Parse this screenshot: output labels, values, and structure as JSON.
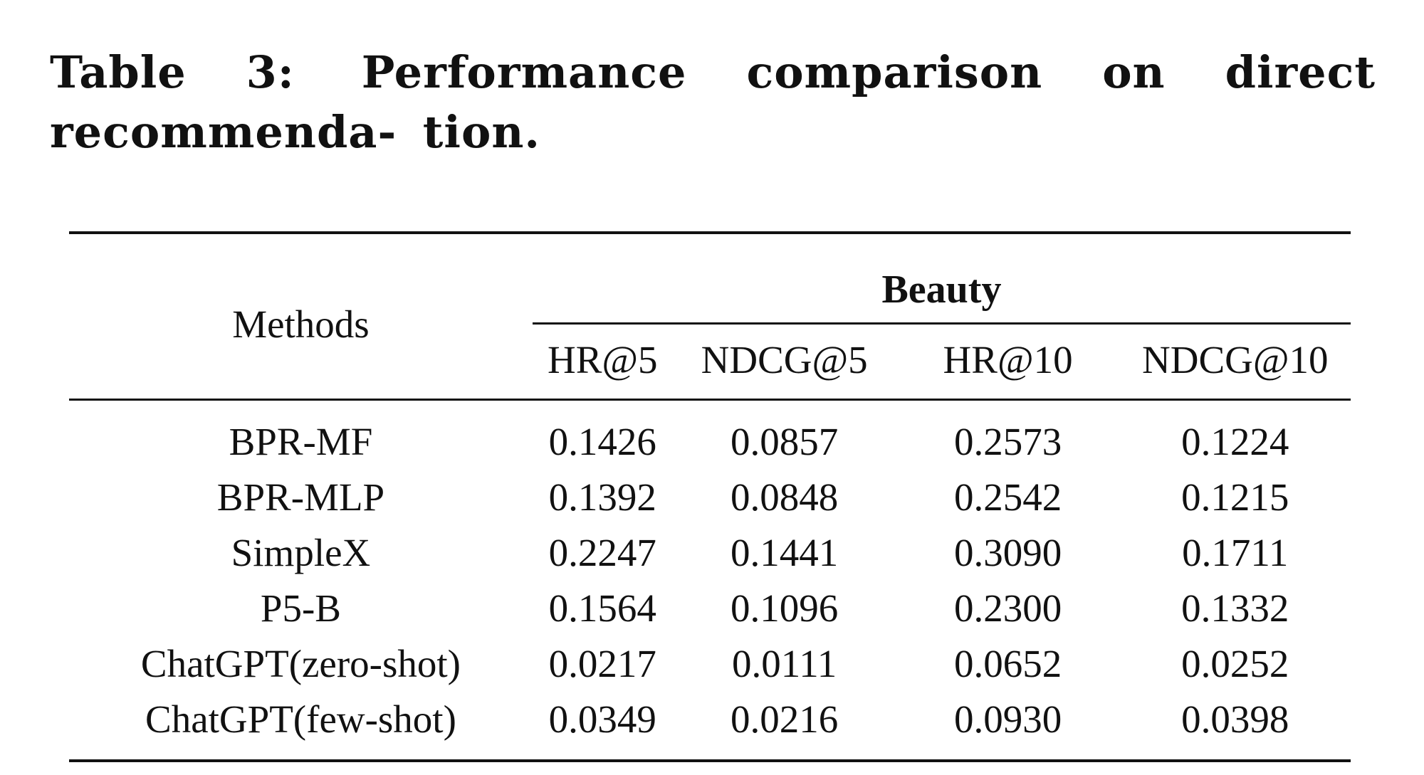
{
  "caption": {
    "label": "Table 3:",
    "text": "Performance comparison on direct recommenda- tion."
  },
  "table": {
    "methods_header": "Methods",
    "group_header": "Beauty",
    "metric_headers": [
      "HR@5",
      "NDCG@5",
      "HR@10",
      "NDCG@10"
    ],
    "rows": [
      {
        "method": "BPR-MF",
        "values": [
          "0.1426",
          "0.0857",
          "0.2573",
          "0.1224"
        ],
        "bold": false
      },
      {
        "method": "BPR-MLP",
        "values": [
          "0.1392",
          "0.0848",
          "0.2542",
          "0.1215"
        ],
        "bold": false
      },
      {
        "method": "SimpleX",
        "values": [
          "0.2247",
          "0.1441",
          "0.3090",
          "0.1711"
        ],
        "bold": true
      },
      {
        "method": "P5-B",
        "values": [
          "0.1564",
          "0.1096",
          "0.2300",
          "0.1332"
        ],
        "bold": false
      },
      {
        "method": "ChatGPT(zero-shot)",
        "values": [
          "0.0217",
          "0.0111",
          "0.0652",
          "0.0252"
        ],
        "bold": false
      },
      {
        "method": "ChatGPT(few-shot)",
        "values": [
          "0.0349",
          "0.0216",
          "0.0930",
          "0.0398"
        ],
        "bold": false
      }
    ]
  }
}
